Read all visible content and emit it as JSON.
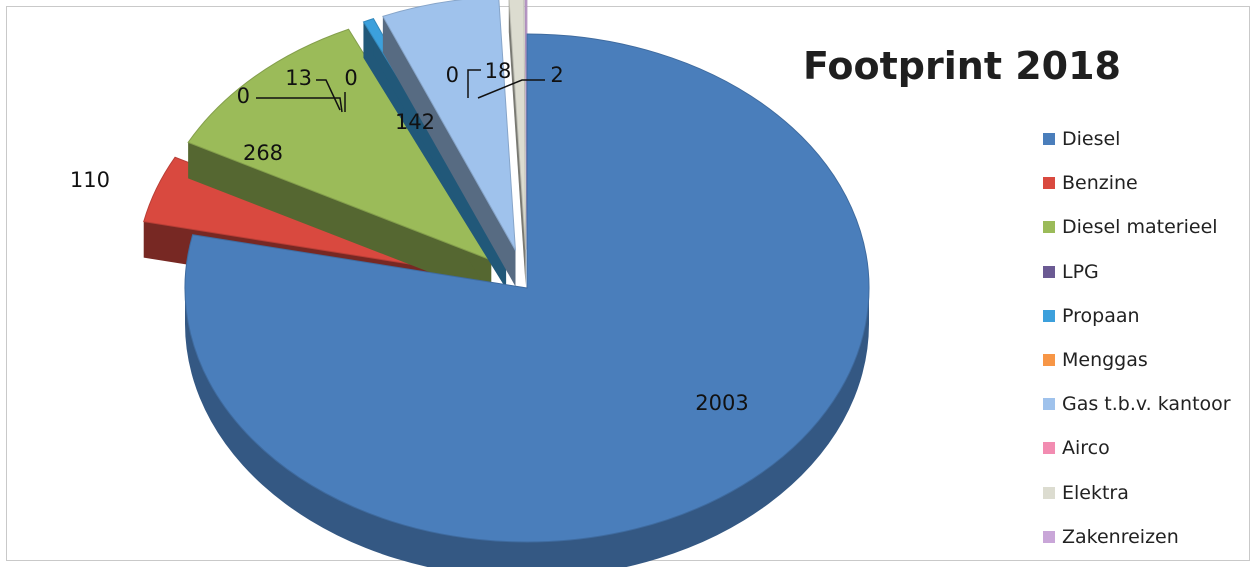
{
  "chart_data": {
    "type": "pie",
    "title": "Footprint 2018",
    "legend_position": "right",
    "exploded": true,
    "three_d": true,
    "series": [
      {
        "name": "Diesel",
        "value": 2003,
        "color": "#4a7ebb"
      },
      {
        "name": "Benzine",
        "value": 110,
        "color": "#d9493f"
      },
      {
        "name": "Diesel materieel",
        "value": 268,
        "color": "#9bbb59"
      },
      {
        "name": "LPG",
        "value": 0,
        "color": "#6b5a93"
      },
      {
        "name": "Propaan",
        "value": 13,
        "color": "#3ca0dc"
      },
      {
        "name": "Menggas",
        "value": 0,
        "color": "#f79646"
      },
      {
        "name": "Gas t.b.v. kantoor",
        "value": 142,
        "color": "#9fc2ec"
      },
      {
        "name": "Airco",
        "value": 0,
        "color": "#f28cb1"
      },
      {
        "name": "Elektra",
        "value": 18,
        "color": "#dcdcd0"
      },
      {
        "name": "Zakenreizen",
        "value": 2,
        "color": "#c9a6d8"
      }
    ],
    "data_labels": [
      "2003",
      "110",
      "268",
      "0",
      "13",
      "0",
      "142",
      "0",
      "18",
      "2"
    ]
  }
}
